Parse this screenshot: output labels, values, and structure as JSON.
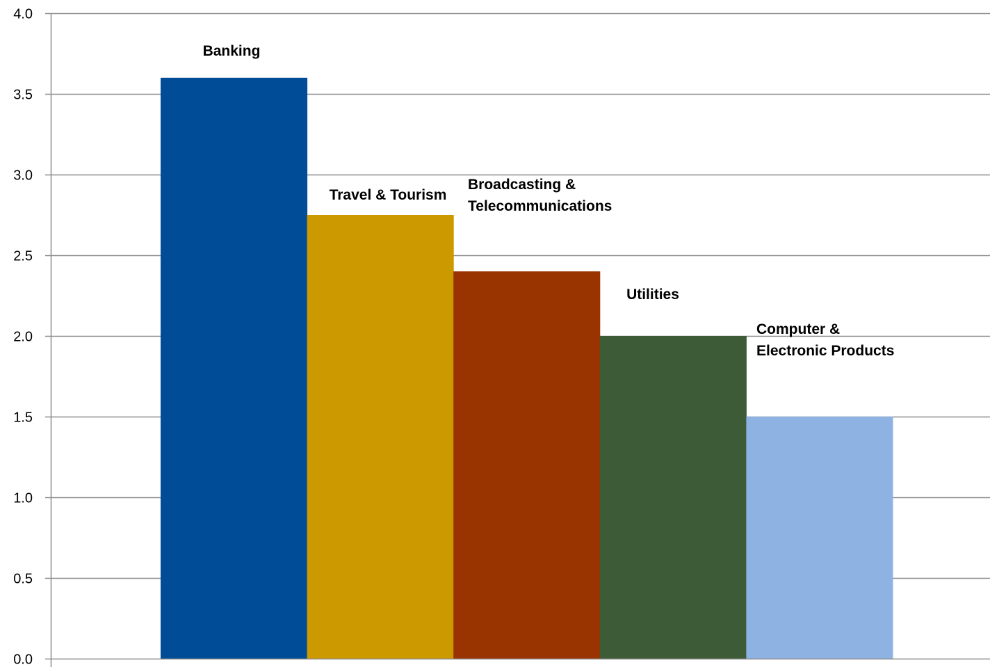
{
  "chart_data": {
    "type": "bar",
    "categories": [
      "Banking",
      "Travel & Tourism",
      "Broadcasting & Telecommunications",
      "Utilities",
      "Computer & Electronic Products"
    ],
    "category_label_lines": [
      [
        "Banking"
      ],
      [
        "Travel & Tourism"
      ],
      [
        "Broadcasting &",
        "Telecommunications"
      ],
      [
        "Utilities"
      ],
      [
        "Computer &",
        "Electronic Products"
      ]
    ],
    "values": [
      3.6,
      2.75,
      2.4,
      2.0,
      1.5
    ],
    "colors": [
      "#004C97",
      "#CC9900",
      "#993300",
      "#3E5B37",
      "#8EB3E2"
    ],
    "title": "",
    "xlabel": "",
    "ylabel": "",
    "ylim": [
      0,
      4
    ],
    "yticks": [
      "0.0",
      "0.5",
      "1.0",
      "1.5",
      "2.0",
      "2.5",
      "3.0",
      "3.5",
      "4.0"
    ],
    "grid": true,
    "legend": "none"
  }
}
